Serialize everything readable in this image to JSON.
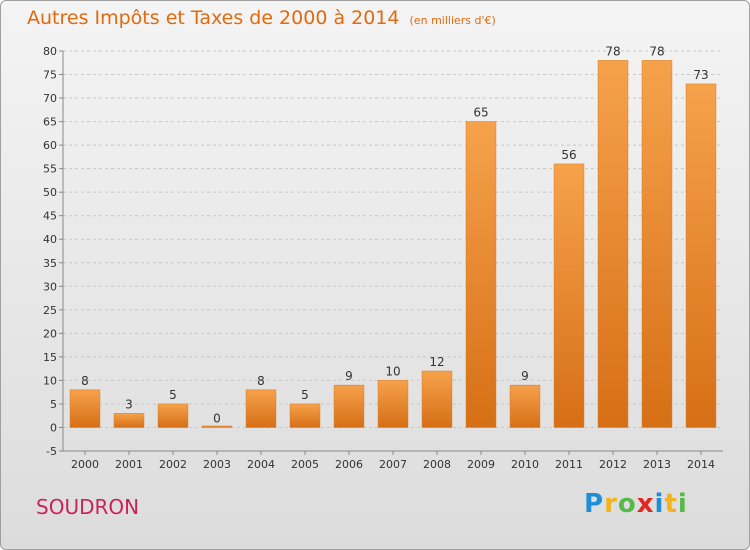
{
  "chart_data": {
    "type": "bar",
    "title": "Autres Impôts et Taxes de 2000 à 2014",
    "subtitle": "(en milliers d'€)",
    "categories": [
      "2000",
      "2001",
      "2002",
      "2003",
      "2004",
      "2005",
      "2006",
      "2007",
      "2008",
      "2009",
      "2010",
      "2011",
      "2012",
      "2013",
      "2014"
    ],
    "values": [
      8,
      3,
      5,
      0,
      8,
      5,
      9,
      10,
      12,
      65,
      9,
      56,
      78,
      78,
      73
    ],
    "ylim": [
      -5,
      80
    ],
    "yticks": [
      -5,
      0,
      5,
      10,
      15,
      20,
      25,
      30,
      35,
      40,
      45,
      50,
      55,
      60,
      65,
      70,
      75,
      80
    ],
    "grid": true,
    "bar_color": "#f29a3c"
  },
  "footer": {
    "commune": "SOUDRON",
    "brand_letters": [
      "P",
      "r",
      "o",
      "x",
      "i",
      "t",
      "i"
    ],
    "brand_colors": [
      "#1e8ed6",
      "#f2b31c",
      "#57b947",
      "#e52620",
      "#1e8ed6",
      "#f2b31c",
      "#57b947"
    ]
  },
  "colors": {
    "accent": "#e06a10",
    "commune": "#c8245a"
  }
}
